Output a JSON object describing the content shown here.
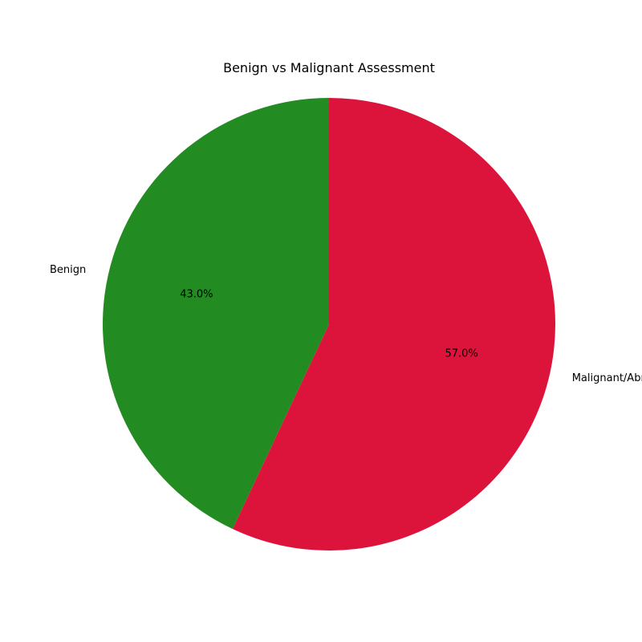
{
  "chart_data": {
    "type": "pie",
    "title": "Benign vs Malignant Assessment",
    "slices": [
      {
        "label": "Benign",
        "value": 43.0,
        "pct_label": "43.0%",
        "color": "#228b22"
      },
      {
        "label": "Malignant/Abnormal",
        "value": 57.0,
        "pct_label": "57.0%",
        "color": "#dc143c"
      }
    ],
    "start_angle_deg": 90,
    "direction": "counterclockwise",
    "legend": "none"
  }
}
